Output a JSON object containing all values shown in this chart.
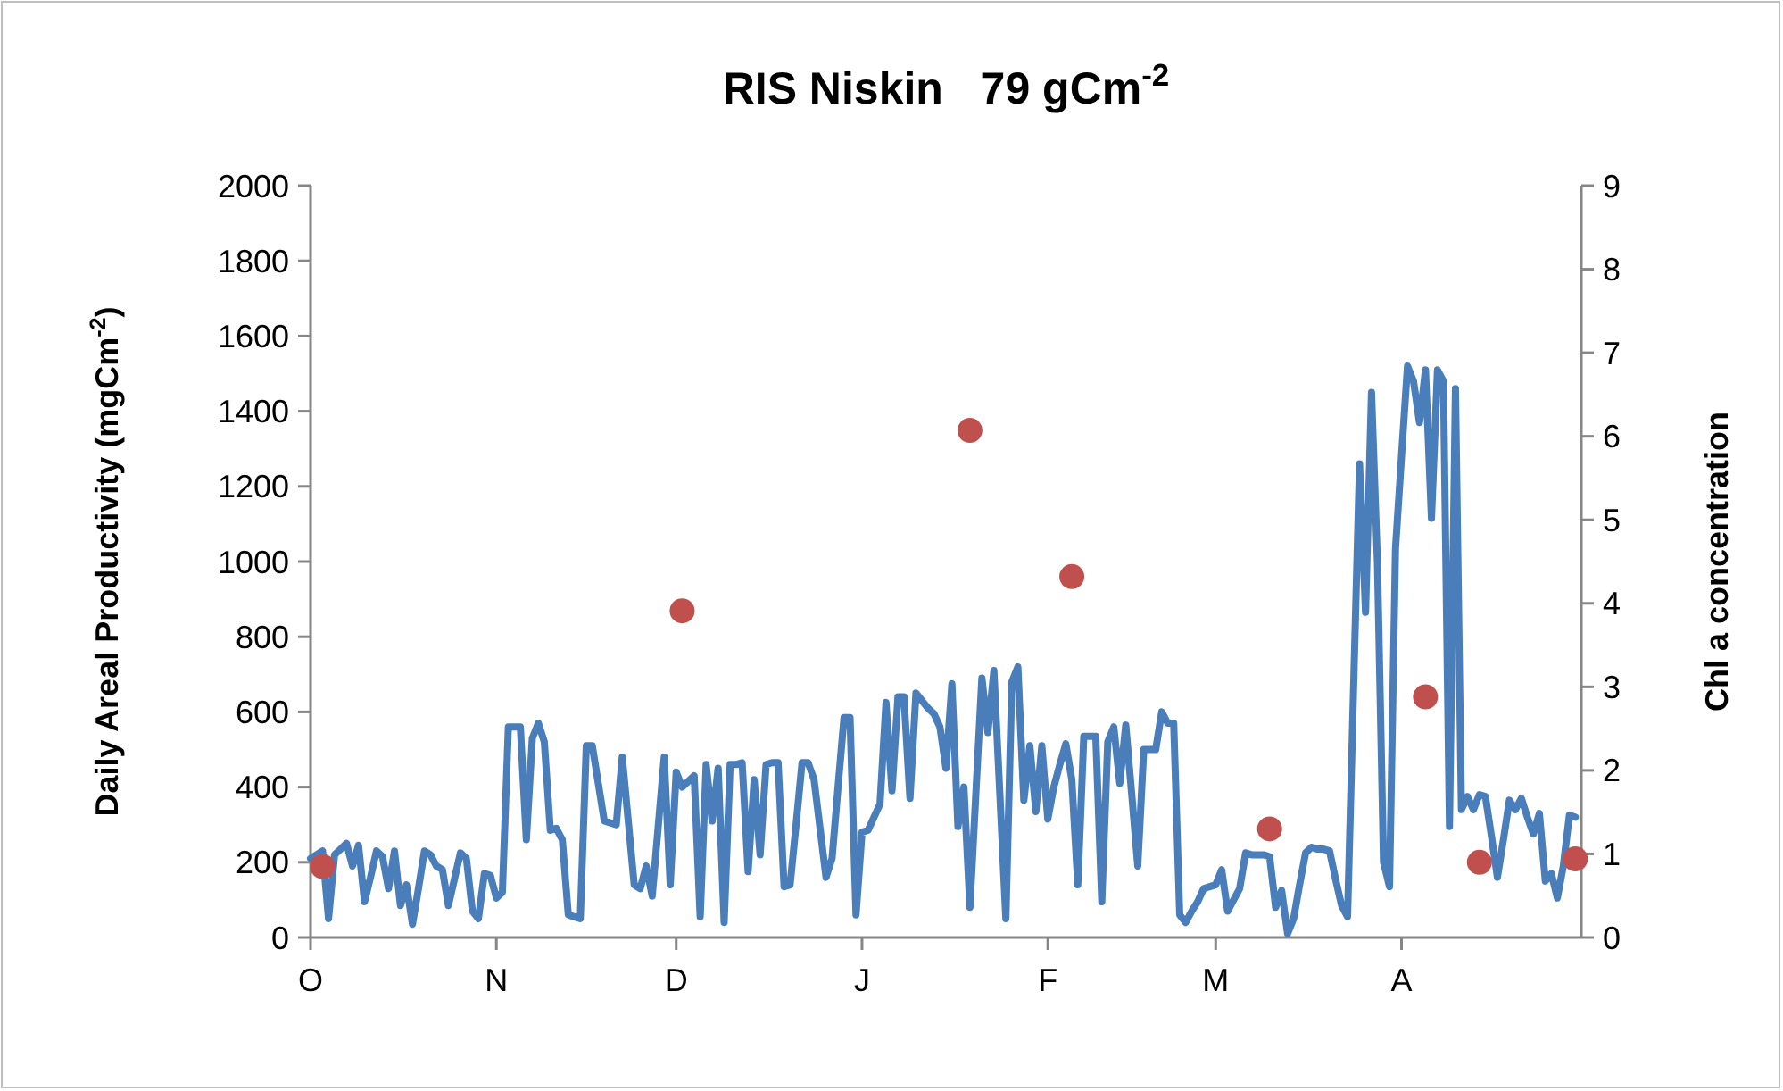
{
  "chart_data": {
    "type": "line",
    "title": "RIS Niskin   79 gCm$^{-2}$",
    "ylabel": "Daily Areal Productivity (mgCm$^{-2}$)",
    "y2label": "Chl a concentration",
    "categories": [
      "O",
      null,
      null,
      null,
      null,
      null,
      null,
      null,
      null,
      null,
      null,
      null,
      null,
      null,
      null,
      null,
      null,
      null,
      null,
      null,
      null,
      null,
      null,
      null,
      null,
      null,
      null,
      null,
      null,
      null,
      null,
      "N",
      null,
      null,
      null,
      null,
      null,
      null,
      null,
      null,
      null,
      null,
      null,
      null,
      null,
      null,
      null,
      null,
      null,
      null,
      null,
      null,
      null,
      null,
      null,
      null,
      null,
      null,
      null,
      null,
      null,
      "D",
      null,
      null,
      null,
      null,
      null,
      null,
      null,
      null,
      null,
      null,
      null,
      null,
      null,
      null,
      null,
      null,
      null,
      null,
      null,
      null,
      null,
      null,
      null,
      null,
      null,
      null,
      null,
      null,
      null,
      null,
      "J",
      null,
      null,
      null,
      null,
      null,
      null,
      null,
      null,
      null,
      null,
      null,
      null,
      null,
      null,
      null,
      null,
      null,
      null,
      null,
      null,
      null,
      null,
      null,
      null,
      null,
      null,
      null,
      null,
      null,
      null,
      "F",
      null,
      null,
      null,
      null,
      null,
      null,
      null,
      null,
      null,
      null,
      null,
      null,
      null,
      null,
      null,
      null,
      null,
      null,
      null,
      null,
      null,
      null,
      null,
      null,
      null,
      null,
      null,
      "M",
      null,
      null,
      null,
      null,
      null,
      null,
      null,
      null,
      null,
      null,
      null,
      null,
      null,
      null,
      null,
      null,
      null,
      null,
      null,
      null,
      null,
      null,
      null,
      null,
      null,
      null,
      null,
      null,
      null,
      null,
      "A",
      null,
      null,
      null,
      null,
      null,
      null,
      null,
      null,
      null,
      null,
      null,
      null,
      null,
      null,
      null,
      null,
      null,
      null,
      null,
      null,
      null,
      null,
      null,
      null,
      null,
      null,
      null,
      null,
      null
    ],
    "ylim": [
      0,
      2000
    ],
    "yticks": [
      0,
      200,
      400,
      600,
      800,
      1000,
      1200,
      1400,
      1600,
      1800,
      2000
    ],
    "y2lim": [
      0,
      9
    ],
    "y2ticks": [
      0,
      1,
      2,
      3,
      4,
      5,
      6,
      7,
      8,
      9
    ],
    "series": [
      {
        "color": "#4a7ebb",
        "line_style": "solid",
        "values": [
          210,
          220,
          230,
          50,
          220,
          235,
          250,
          190,
          245,
          95,
          160,
          230,
          215,
          130,
          230,
          85,
          140,
          35,
          130,
          230,
          220,
          190,
          180,
          85,
          155,
          225,
          210,
          70,
          50,
          170,
          165,
          105,
          120,
          560,
          560,
          560,
          260,
          530,
          570,
          520,
          285,
          290,
          260,
          60,
          55,
          50,
          510,
          510,
          410,
          310,
          305,
          300,
          480,
          310,
          140,
          130,
          190,
          110,
          295,
          480,
          140,
          440,
          400,
          415,
          430,
          55,
          460,
          310,
          450,
          40,
          460,
          460,
          465,
          175,
          420,
          220,
          460,
          465,
          465,
          135,
          140,
          300,
          465,
          465,
          420,
          290,
          160,
          210,
          400,
          585,
          585,
          60,
          280,
          285,
          320,
          355,
          625,
          390,
          640,
          640,
          370,
          650,
          630,
          610,
          595,
          560,
          450,
          675,
          295,
          400,
          80,
          385,
          690,
          545,
          710,
          380,
          50,
          680,
          720,
          365,
          510,
          335,
          510,
          315,
          400,
          460,
          515,
          420,
          140,
          535,
          535,
          535,
          95,
          520,
          560,
          410,
          565,
          380,
          190,
          500,
          500,
          500,
          600,
          570,
          570,
          60,
          40,
          70,
          95,
          130,
          135,
          140,
          180,
          70,
          100,
          130,
          225,
          220,
          220,
          220,
          215,
          80,
          125,
          10,
          50,
          140,
          225,
          240,
          235,
          235,
          230,
          155,
          85,
          55,
          660,
          1260,
          865,
          1450,
          990,
          200,
          135,
          1035,
          1280,
          1520,
          1480,
          1370,
          1510,
          1115,
          1510,
          1480,
          295,
          1460,
          340,
          375,
          340,
          380,
          375,
          270,
          160,
          260,
          365,
          340,
          370,
          320,
          275,
          330,
          150,
          170,
          105,
          190,
          325,
          320
        ]
      },
      {
        "type": "scatter",
        "axis": "y2",
        "color": "#c0504d",
        "marker": "circle",
        "values": [
          null,
          null,
          0.85,
          null,
          null,
          null,
          null,
          null,
          null,
          null,
          null,
          null,
          null,
          null,
          null,
          null,
          null,
          null,
          null,
          null,
          null,
          null,
          null,
          null,
          null,
          null,
          null,
          null,
          null,
          null,
          null,
          null,
          null,
          null,
          null,
          null,
          null,
          null,
          null,
          null,
          null,
          null,
          null,
          null,
          null,
          null,
          null,
          null,
          null,
          null,
          null,
          null,
          null,
          null,
          null,
          null,
          null,
          null,
          null,
          null,
          null,
          null,
          3.91,
          null,
          null,
          null,
          null,
          null,
          null,
          null,
          null,
          null,
          null,
          null,
          null,
          null,
          null,
          null,
          null,
          null,
          null,
          null,
          null,
          null,
          null,
          null,
          null,
          null,
          null,
          null,
          null,
          null,
          null,
          null,
          null,
          null,
          null,
          null,
          null,
          null,
          null,
          null,
          null,
          null,
          null,
          null,
          null,
          null,
          null,
          null,
          6.07,
          null,
          null,
          null,
          null,
          null,
          null,
          null,
          null,
          null,
          null,
          null,
          null,
          null,
          null,
          null,
          null,
          4.32,
          null,
          null,
          null,
          null,
          null,
          null,
          null,
          null,
          null,
          null,
          null,
          null,
          null,
          null,
          null,
          null,
          null,
          null,
          null,
          null,
          null,
          null,
          null,
          null,
          null,
          null,
          null,
          null,
          null,
          null,
          null,
          null,
          1.3,
          null,
          null,
          null,
          null,
          null,
          null,
          null,
          null,
          null,
          null,
          null,
          null,
          null,
          null,
          null,
          null,
          null,
          null,
          null,
          null,
          null,
          null,
          null,
          null,
          null,
          2.88,
          null,
          null,
          null,
          null,
          null,
          null,
          null,
          null,
          0.9,
          null,
          null,
          null,
          null,
          null,
          null,
          null,
          null,
          null,
          null,
          null,
          null,
          null,
          null,
          null,
          0.94
        ]
      }
    ]
  }
}
